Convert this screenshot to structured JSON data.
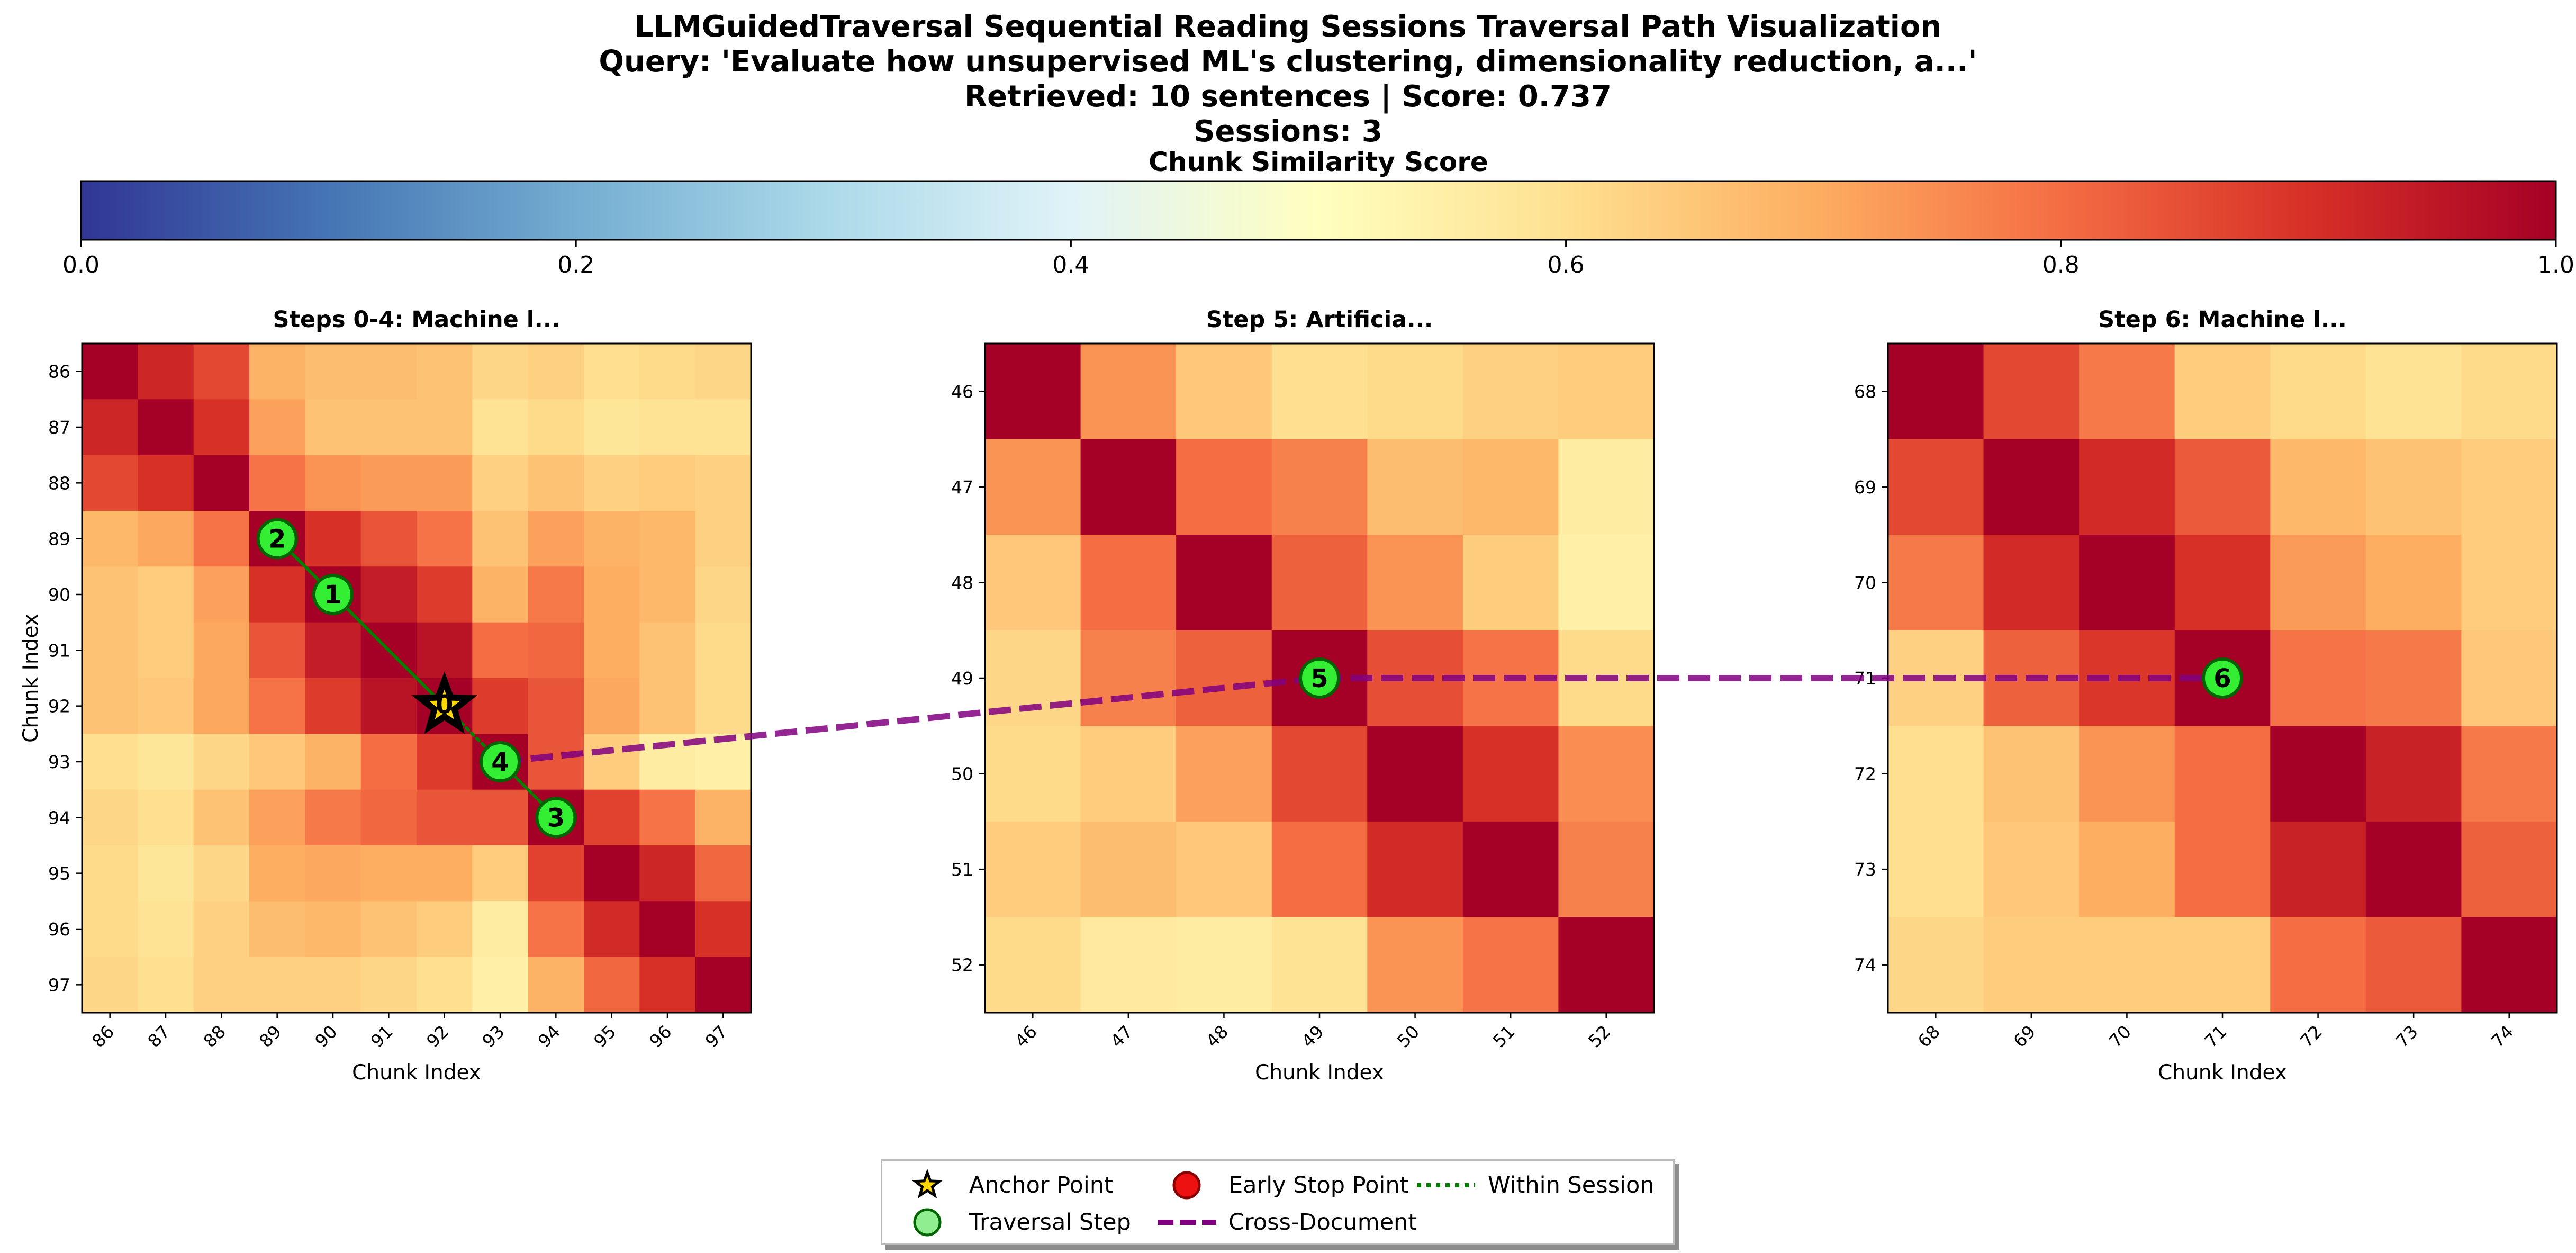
{
  "title": {
    "line1": "LLMGuidedTraversal Sequential Reading Sessions Traversal Path Visualization",
    "line2": "Query: 'Evaluate how unsupervised ML's clustering, dimensionality reduction, a...'",
    "line3": "Retrieved: 10 sentences | Score: 0.737",
    "line4": "Sessions: 3"
  },
  "colors": {
    "colormap": [
      "#313695",
      "#4575b4",
      "#74add1",
      "#abd9e9",
      "#e0f3f8",
      "#ffffbf",
      "#fee090",
      "#fdae61",
      "#f46d43",
      "#d73027",
      "#a50026"
    ],
    "step_marker_fill": "#33ee33",
    "step_marker_edge": "#006400",
    "anchor_fill": "#ffd700",
    "early_stop_fill": "#ee1111",
    "cross_document": "#800080",
    "within_session": "#008000"
  },
  "chart_data": {
    "type": "heatmap",
    "colorbar": {
      "title": "Chunk Similarity Score",
      "range": [
        0.0,
        1.0
      ],
      "ticks": [
        "0.0",
        "0.2",
        "0.4",
        "0.6",
        "0.8",
        "1.0"
      ]
    },
    "panels": [
      {
        "title": "Steps 0-4: Machine l...",
        "xlabel": "Chunk Index",
        "ylabel": "Chunk Index",
        "indices": [
          86,
          87,
          88,
          89,
          90,
          91,
          92,
          93,
          94,
          95,
          96,
          97
        ],
        "matrix": [
          [
            1.0,
            0.92,
            0.86,
            0.69,
            0.67,
            0.67,
            0.66,
            0.62,
            0.63,
            0.6,
            0.61,
            0.62
          ],
          [
            0.92,
            1.0,
            0.9,
            0.72,
            0.66,
            0.66,
            0.66,
            0.59,
            0.61,
            0.58,
            0.59,
            0.59
          ],
          [
            0.86,
            0.9,
            1.0,
            0.79,
            0.74,
            0.73,
            0.73,
            0.63,
            0.66,
            0.63,
            0.64,
            0.63
          ],
          [
            0.68,
            0.71,
            0.79,
            1.0,
            0.9,
            0.84,
            0.79,
            0.66,
            0.72,
            0.69,
            0.68,
            0.63
          ],
          [
            0.66,
            0.64,
            0.72,
            0.9,
            1.0,
            0.94,
            0.88,
            0.69,
            0.78,
            0.7,
            0.68,
            0.62
          ],
          [
            0.66,
            0.64,
            0.71,
            0.84,
            0.94,
            1.0,
            0.96,
            0.8,
            0.81,
            0.7,
            0.66,
            0.61
          ],
          [
            0.66,
            0.65,
            0.71,
            0.79,
            0.88,
            0.96,
            1.0,
            0.88,
            0.84,
            0.71,
            0.66,
            0.61
          ],
          [
            0.6,
            0.58,
            0.62,
            0.65,
            0.69,
            0.8,
            0.88,
            1.0,
            0.84,
            0.64,
            0.56,
            0.55
          ],
          [
            0.62,
            0.6,
            0.66,
            0.72,
            0.78,
            0.81,
            0.84,
            0.84,
            1.0,
            0.87,
            0.79,
            0.69
          ],
          [
            0.61,
            0.58,
            0.62,
            0.7,
            0.71,
            0.7,
            0.7,
            0.64,
            0.87,
            1.0,
            0.92,
            0.81
          ],
          [
            0.61,
            0.59,
            0.63,
            0.67,
            0.68,
            0.66,
            0.64,
            0.56,
            0.79,
            0.91,
            1.0,
            0.9
          ],
          [
            0.62,
            0.6,
            0.63,
            0.63,
            0.63,
            0.62,
            0.6,
            0.55,
            0.69,
            0.81,
            0.9,
            1.0
          ]
        ],
        "markers": [
          {
            "type": "anchor",
            "label": "0",
            "x": 92,
            "y": 92
          },
          {
            "type": "step",
            "label": "1",
            "x": 90,
            "y": 90
          },
          {
            "type": "step",
            "label": "2",
            "x": 89,
            "y": 89
          },
          {
            "type": "step",
            "label": "3",
            "x": 94,
            "y": 94
          },
          {
            "type": "step",
            "label": "4",
            "x": 93,
            "y": 93
          }
        ],
        "within_path": [
          [
            92,
            92
          ],
          [
            90,
            90
          ],
          [
            89,
            89
          ],
          [
            94,
            94
          ],
          [
            93,
            93
          ]
        ]
      },
      {
        "title": "Step 5: Artificia...",
        "xlabel": "Chunk Index",
        "ylabel": "",
        "indices": [
          46,
          47,
          48,
          49,
          50,
          51,
          52
        ],
        "matrix": [
          [
            1.0,
            0.74,
            0.65,
            0.6,
            0.61,
            0.63,
            0.64
          ],
          [
            0.74,
            1.0,
            0.8,
            0.77,
            0.67,
            0.68,
            0.56
          ],
          [
            0.65,
            0.8,
            1.0,
            0.82,
            0.74,
            0.64,
            0.55
          ],
          [
            0.62,
            0.77,
            0.82,
            1.0,
            0.85,
            0.79,
            0.61
          ],
          [
            0.61,
            0.64,
            0.72,
            0.86,
            1.0,
            0.9,
            0.75
          ],
          [
            0.64,
            0.67,
            0.65,
            0.8,
            0.91,
            1.0,
            0.77
          ],
          [
            0.61,
            0.57,
            0.56,
            0.59,
            0.74,
            0.79,
            1.0
          ]
        ],
        "markers": [
          {
            "type": "step",
            "label": "5",
            "x": 49,
            "y": 49
          }
        ]
      },
      {
        "title": "Step 6: Machine l...",
        "xlabel": "Chunk Index",
        "ylabel": "",
        "indices": [
          68,
          69,
          70,
          71,
          72,
          73,
          74
        ],
        "matrix": [
          [
            1.0,
            0.86,
            0.78,
            0.64,
            0.61,
            0.59,
            0.61
          ],
          [
            0.86,
            1.0,
            0.91,
            0.83,
            0.68,
            0.66,
            0.64
          ],
          [
            0.78,
            0.91,
            1.0,
            0.9,
            0.73,
            0.7,
            0.64
          ],
          [
            0.63,
            0.82,
            0.89,
            1.0,
            0.79,
            0.78,
            0.65
          ],
          [
            0.6,
            0.66,
            0.74,
            0.8,
            1.0,
            0.93,
            0.78
          ],
          [
            0.6,
            0.65,
            0.7,
            0.8,
            0.93,
            1.0,
            0.82
          ],
          [
            0.62,
            0.64,
            0.64,
            0.64,
            0.8,
            0.83,
            1.0
          ]
        ],
        "markers": [
          {
            "type": "step",
            "label": "6",
            "x": 71,
            "y": 71
          }
        ]
      }
    ],
    "cross_document_path": [
      {
        "panel": 0,
        "x": 93,
        "y": 93
      },
      {
        "panel": 1,
        "x": 49,
        "y": 49
      },
      {
        "panel": 2,
        "x": 71,
        "y": 71
      }
    ],
    "legend": {
      "position": "bottom-center",
      "items": [
        {
          "marker": "anchor",
          "label": "Anchor Point"
        },
        {
          "marker": "step",
          "label": "Traversal Step"
        },
        {
          "marker": "early_stop",
          "label": "Early Stop Point"
        },
        {
          "marker": "cross_document",
          "label": "Cross-Document"
        },
        {
          "marker": "within_session",
          "label": "Within Session"
        }
      ]
    }
  }
}
